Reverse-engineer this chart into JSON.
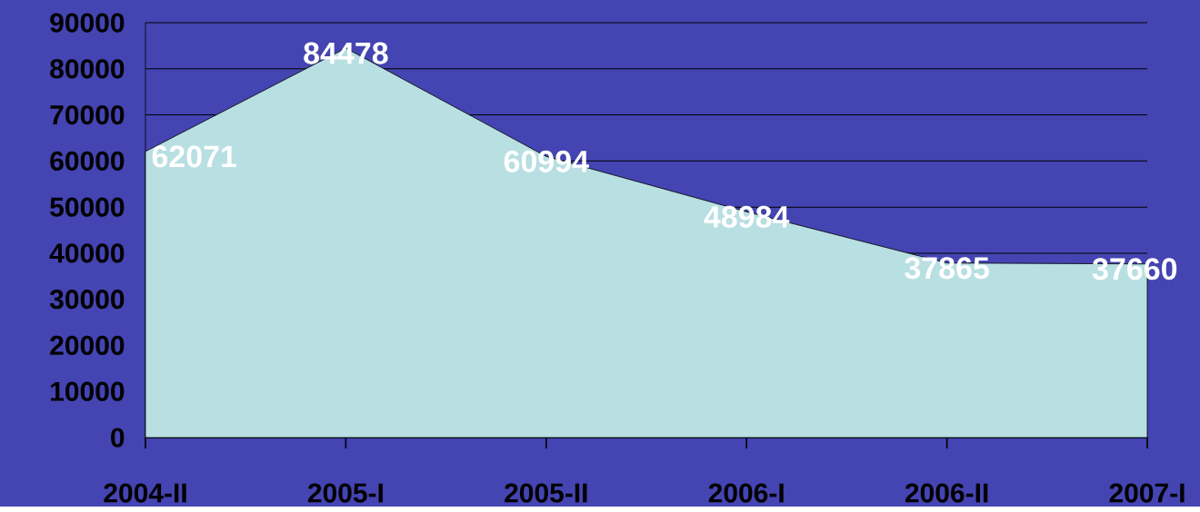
{
  "chart_data": {
    "type": "area",
    "categories": [
      "2004-II",
      "2005-I",
      "2005-II",
      "2006-I",
      "2006-II",
      "2007-I"
    ],
    "values": [
      62071,
      84478,
      60994,
      48984,
      37865,
      37660
    ],
    "color": "#b8dfe2",
    "ylim": [
      0,
      90000
    ],
    "yticks": [
      0,
      10000,
      20000,
      30000,
      40000,
      50000,
      60000,
      70000,
      80000,
      90000
    ],
    "grid": "y",
    "data_labels": true
  }
}
